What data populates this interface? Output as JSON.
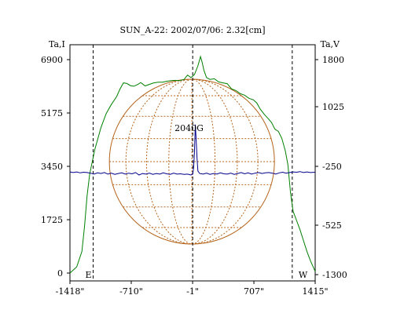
{
  "chart_data": {
    "type": "line",
    "title": "SUN_A-22: 2002/07/06: 2.32[cm]",
    "left_axis_label": "Ta,I",
    "right_axis_label": "Ta,V",
    "x_ticks": [
      "-1418\"",
      "-710\"",
      "-1\"",
      "707\"",
      "1415\""
    ],
    "x_tick_values": [
      -1418,
      -710,
      -1,
      707,
      1415
    ],
    "xlim": [
      -1418,
      1415
    ],
    "y_left_ticks": [
      "0",
      "1725",
      "3450",
      "5175",
      "6900"
    ],
    "y_left_values": [
      0,
      1725,
      3450,
      5175,
      6900
    ],
    "ylim_left": [
      0,
      6900
    ],
    "y_right_ticks": [
      "-1300",
      "-525",
      "-250",
      "1025",
      "1800"
    ],
    "y_right_values": [
      -1300,
      -525,
      -250,
      1025,
      1800
    ],
    "limb_labels": {
      "east": "E",
      "west": "W"
    },
    "limb_positions": [
      -1150,
      1150
    ],
    "source_label": "2040G",
    "source_x": 30,
    "grid": true,
    "series": [
      {
        "axis": "left",
        "color": "#008000",
        "points": [
          [
            -1418,
            0
          ],
          [
            -1340,
            200
          ],
          [
            -1280,
            700
          ],
          [
            -1250,
            1500
          ],
          [
            -1220,
            2500
          ],
          [
            -1190,
            3200
          ],
          [
            -1160,
            3600
          ],
          [
            -1130,
            4000
          ],
          [
            -1100,
            4300
          ],
          [
            -1060,
            4700
          ],
          [
            -1000,
            5150
          ],
          [
            -940,
            5450
          ],
          [
            -880,
            5700
          ],
          [
            -840,
            5950
          ],
          [
            -800,
            6150
          ],
          [
            -760,
            6130
          ],
          [
            -720,
            6060
          ],
          [
            -680,
            6040
          ],
          [
            -640,
            6090
          ],
          [
            -600,
            6160
          ],
          [
            -550,
            6050
          ],
          [
            -500,
            6100
          ],
          [
            -450,
            6150
          ],
          [
            -400,
            6170
          ],
          [
            -350,
            6170
          ],
          [
            -300,
            6200
          ],
          [
            -250,
            6220
          ],
          [
            -200,
            6230
          ],
          [
            -150,
            6220
          ],
          [
            -100,
            6260
          ],
          [
            -60,
            6400
          ],
          [
            -20,
            6320
          ],
          [
            20,
            6420
          ],
          [
            60,
            6700
          ],
          [
            90,
            7000
          ],
          [
            110,
            6800
          ],
          [
            130,
            6550
          ],
          [
            160,
            6320
          ],
          [
            200,
            6260
          ],
          [
            250,
            6280
          ],
          [
            300,
            6180
          ],
          [
            350,
            6150
          ],
          [
            400,
            6120
          ],
          [
            450,
            5950
          ],
          [
            500,
            5900
          ],
          [
            550,
            5800
          ],
          [
            600,
            5750
          ],
          [
            650,
            5650
          ],
          [
            700,
            5600
          ],
          [
            740,
            5500
          ],
          [
            780,
            5300
          ],
          [
            830,
            5120
          ],
          [
            870,
            5000
          ],
          [
            910,
            4870
          ],
          [
            950,
            4650
          ],
          [
            990,
            4580
          ],
          [
            1030,
            4350
          ],
          [
            1070,
            3950
          ],
          [
            1100,
            3500
          ],
          [
            1130,
            2600
          ],
          [
            1160,
            2000
          ],
          [
            1200,
            1700
          ],
          [
            1240,
            1400
          ],
          [
            1280,
            1050
          ],
          [
            1320,
            700
          ],
          [
            1360,
            400
          ],
          [
            1400,
            150
          ],
          [
            1415,
            50
          ]
        ]
      },
      {
        "axis": "left",
        "color": "#00008b",
        "points": [
          [
            -1418,
            3270
          ],
          [
            -1380,
            3250
          ],
          [
            -1340,
            3270
          ],
          [
            -1300,
            3240
          ],
          [
            -1260,
            3260
          ],
          [
            -1220,
            3250
          ],
          [
            -1180,
            3230
          ],
          [
            -1140,
            3200
          ],
          [
            -1100,
            3240
          ],
          [
            -1060,
            3220
          ],
          [
            -1020,
            3250
          ],
          [
            -980,
            3200
          ],
          [
            -940,
            3230
          ],
          [
            -900,
            3190
          ],
          [
            -860,
            3220
          ],
          [
            -820,
            3240
          ],
          [
            -780,
            3200
          ],
          [
            -740,
            3230
          ],
          [
            -700,
            3210
          ],
          [
            -660,
            3250
          ],
          [
            -620,
            3170
          ],
          [
            -580,
            3220
          ],
          [
            -540,
            3200
          ],
          [
            -500,
            3230
          ],
          [
            -460,
            3190
          ],
          [
            -420,
            3220
          ],
          [
            -380,
            3200
          ],
          [
            -340,
            3240
          ],
          [
            -300,
            3210
          ],
          [
            -260,
            3190
          ],
          [
            -220,
            3230
          ],
          [
            -180,
            3200
          ],
          [
            -140,
            3210
          ],
          [
            -100,
            3190
          ],
          [
            -60,
            3200
          ],
          [
            -20,
            3170
          ],
          [
            0,
            3200
          ],
          [
            10,
            3400
          ],
          [
            20,
            3900
          ],
          [
            30,
            4800
          ],
          [
            40,
            4300
          ],
          [
            50,
            3700
          ],
          [
            60,
            3300
          ],
          [
            80,
            3220
          ],
          [
            120,
            3200
          ],
          [
            160,
            3230
          ],
          [
            200,
            3190
          ],
          [
            240,
            3220
          ],
          [
            280,
            3200
          ],
          [
            320,
            3240
          ],
          [
            360,
            3210
          ],
          [
            400,
            3200
          ],
          [
            440,
            3230
          ],
          [
            480,
            3190
          ],
          [
            520,
            3220
          ],
          [
            560,
            3250
          ],
          [
            600,
            3210
          ],
          [
            640,
            3240
          ],
          [
            680,
            3200
          ],
          [
            720,
            3230
          ],
          [
            760,
            3250
          ],
          [
            800,
            3220
          ],
          [
            840,
            3240
          ],
          [
            880,
            3250
          ],
          [
            920,
            3230
          ],
          [
            960,
            3200
          ],
          [
            1000,
            3240
          ],
          [
            1040,
            3260
          ],
          [
            1080,
            3230
          ],
          [
            1120,
            3250
          ],
          [
            1160,
            3270
          ],
          [
            1200,
            3260
          ],
          [
            1240,
            3280
          ],
          [
            1280,
            3250
          ],
          [
            1320,
            3270
          ],
          [
            1360,
            3250
          ],
          [
            1415,
            3260
          ]
        ]
      }
    ]
  }
}
